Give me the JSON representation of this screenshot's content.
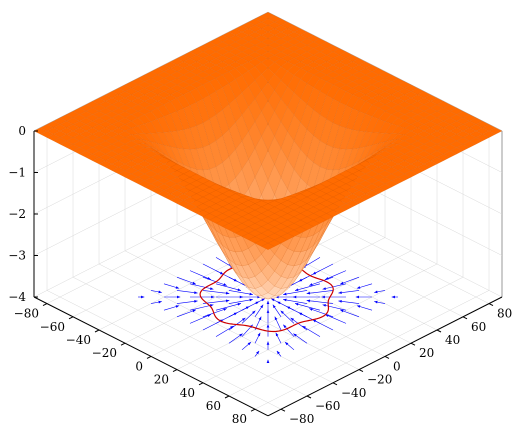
{
  "chart_data": {
    "type": "surface3d",
    "title": "",
    "xlabel": "",
    "ylabel": "",
    "zlabel": "",
    "xlim": [
      -90,
      90
    ],
    "ylim": [
      -90,
      90
    ],
    "zlim": [
      -4,
      0
    ],
    "x_ticks": [
      -80,
      -60,
      -40,
      -20,
      0,
      20,
      40,
      60,
      80
    ],
    "y_ticks": [
      -80,
      -60,
      -40,
      -20,
      0,
      20,
      40,
      60,
      80
    ],
    "z_ticks": [
      0,
      -1,
      -2,
      -3,
      -4
    ],
    "x_tick_labels": [
      "−80",
      "−60",
      "−40",
      "−20",
      "0",
      "20",
      "40",
      "60",
      "80"
    ],
    "y_tick_labels": [
      "−80",
      "−60",
      "−40",
      "−20",
      "0",
      "20",
      "40",
      "60",
      "80"
    ],
    "z_tick_labels": [
      "0",
      "−1",
      "−2",
      "−3",
      "−4"
    ],
    "grid": true,
    "surface": {
      "function": "z = -4 * exp(-(x^2 + y^2) / 1800) * (0.5 + 0.5 * cos(x*y*pi/8100 ... approx radial well with four corner lobes)",
      "min_z": -4,
      "max_z": 0,
      "colormap_top": "#ff6b00",
      "colormap_bottom": "#ffffff",
      "mesh_color": "#c85000"
    },
    "contour": {
      "level": -2,
      "color": "#cc0000"
    },
    "quiver": {
      "color": "#0000ff",
      "grid_spacing": 10,
      "range": [
        -80,
        80
      ]
    }
  }
}
